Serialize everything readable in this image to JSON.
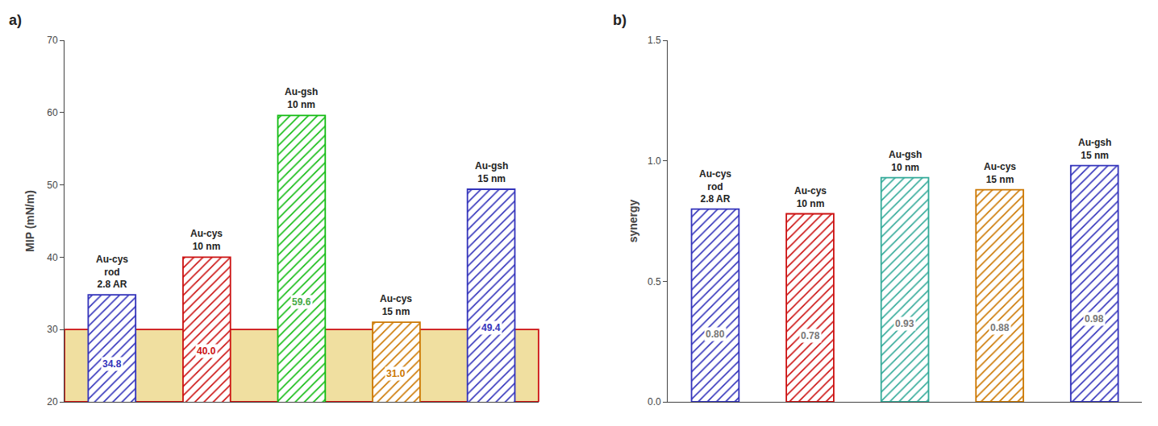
{
  "chart_data": [
    {
      "type": "bar",
      "title": "a)",
      "categories": [
        "Au-cys\nrod\n2.8 AR",
        "Au-cys\n10 nm",
        "Au-gsh\n10 nm",
        "Au-cys\n15 nm",
        "Au-gsh\n15 nm"
      ],
      "values": [
        34.8,
        40.0,
        59.6,
        31.0,
        49.4
      ],
      "value_labels": [
        "34.8",
        "40.0",
        "59.6",
        "31.0",
        "49.4"
      ],
      "colors": [
        "#3333bb",
        "#cc1111",
        "#11bb11",
        "#cc7700",
        "#3333bb"
      ],
      "value_label_colors": [
        "#3333bb",
        "#cc1111",
        "#44aa44",
        "#cc7700",
        "#3333bb"
      ],
      "y_label": "MIP (mN/m)",
      "ylim": [
        20,
        70
      ],
      "yticks": [
        20,
        30,
        40,
        50,
        60,
        70
      ],
      "highlight": {
        "ymin": 20,
        "ymax": 30,
        "color": "#f0dfa0",
        "line_color": "#cc1111"
      },
      "data_labels": true,
      "tick_labels": "y",
      "grid": false
    },
    {
      "type": "bar",
      "title": "b)",
      "categories": [
        "Au-cys\nrod\n2.8 AR",
        "Au-cys\n10 nm",
        "Au-gsh\n10 nm",
        "Au-cys\n15 nm",
        "Au-gsh\n15 nm"
      ],
      "values": [
        0.8,
        0.78,
        0.93,
        0.88,
        0.98
      ],
      "value_labels": [
        "0.80",
        "0.78",
        "0.93",
        "0.88",
        "0.98"
      ],
      "colors": [
        "#3333bb",
        "#cc1111",
        "#33aa99",
        "#cc7700",
        "#3333bb"
      ],
      "value_label_colors": [
        "#777777",
        "#777777",
        "#777777",
        "#777777",
        "#777777"
      ],
      "y_label": "synergy",
      "ylim": [
        0.0,
        1.5
      ],
      "yticks": [
        {
          "value": 0,
          "label": "0.0"
        },
        0.5,
        {
          "value": 1,
          "label": "1.0"
        },
        1.5
      ],
      "data_labels": true,
      "tick_labels": "y",
      "grid": false
    }
  ]
}
